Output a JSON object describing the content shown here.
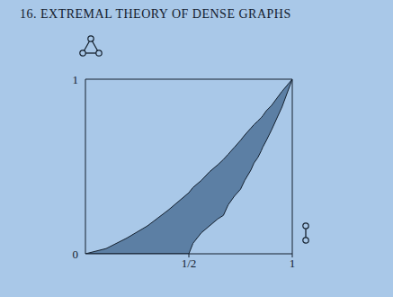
{
  "chart_data": {
    "type": "area",
    "title": "16. EXTREMAL THEORY OF DENSE GRAPHS",
    "x": [
      0,
      0.1,
      0.2,
      0.3,
      0.4,
      0.5,
      0.52,
      0.56,
      0.6,
      0.64,
      0.667,
      0.69,
      0.72,
      0.75,
      0.77,
      0.8,
      0.815,
      0.833,
      0.85,
      0.857,
      0.875,
      0.9,
      0.95,
      1
    ],
    "lower": [
      0,
      0,
      0,
      0,
      0,
      0,
      0.06,
      0.12,
      0.16,
      0.2,
      0.22,
      0.28,
      0.33,
      0.37,
      0.42,
      0.48,
      0.52,
      0.55,
      0.59,
      0.61,
      0.65,
      0.71,
      0.84,
      1
    ],
    "upper": [
      0,
      0.03,
      0.09,
      0.16,
      0.25,
      0.35,
      0.38,
      0.42,
      0.47,
      0.51,
      0.54,
      0.57,
      0.61,
      0.65,
      0.68,
      0.72,
      0.74,
      0.76,
      0.78,
      0.79,
      0.82,
      0.85,
      0.93,
      1
    ],
    "color": "#4f7298",
    "xlim": [
      0,
      1
    ],
    "xticks": [
      {
        "value": 0.5,
        "label": "1/2"
      },
      1
    ],
    "ylim": [
      0,
      1
    ],
    "yticks": [
      0,
      1
    ],
    "grid": false
  }
}
